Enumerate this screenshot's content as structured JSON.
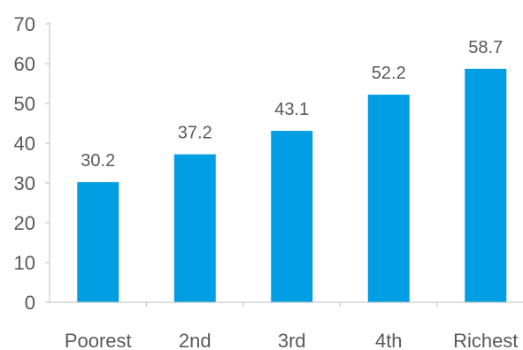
{
  "chart_data": {
    "type": "bar",
    "categories": [
      "Poorest",
      "2nd",
      "3rd",
      "4th",
      "Richest"
    ],
    "values": [
      30.2,
      37.2,
      43.1,
      52.2,
      58.7
    ],
    "data_labels": [
      "30.2",
      "37.2",
      "43.1",
      "52.2",
      "58.7"
    ],
    "y_ticks": [
      "0",
      "10",
      "20",
      "30",
      "40",
      "50",
      "60",
      "70"
    ],
    "ylim": [
      0,
      70
    ],
    "title": "",
    "xlabel": "",
    "ylabel": "",
    "grid": false,
    "legend": "none",
    "bar_color": "#009fe3",
    "axis_color": "#bfbfbf",
    "text_color": "#595959"
  }
}
